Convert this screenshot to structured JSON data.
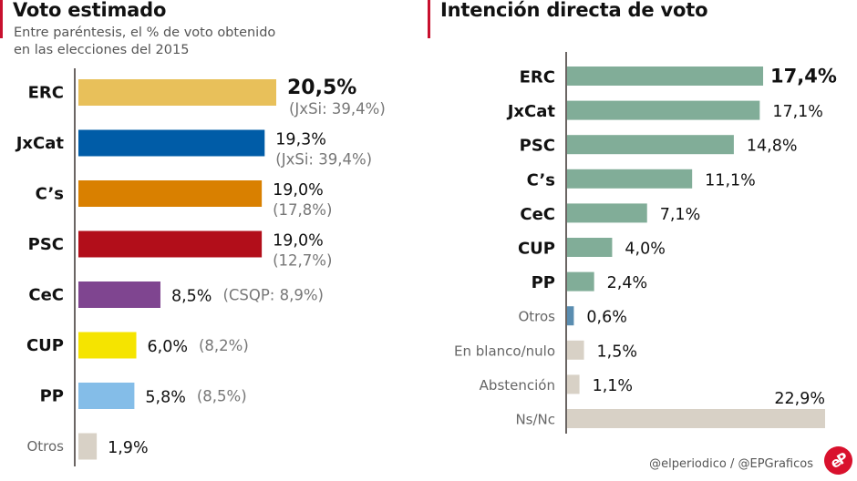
{
  "footer": {
    "credit": "@elperiodico / @EPGraficos",
    "logo_text": "eP"
  },
  "colors": {
    "accent_red": "#c8102e",
    "logo_red": "#d9112d",
    "axis": "#6b6563",
    "green_bar": "#81ad98",
    "otros_blue": "#5a8db0",
    "neutral_bar": "#d8d1c6"
  },
  "chart_data": [
    {
      "type": "bar",
      "orientation": "horizontal",
      "title": "Voto estimado",
      "subtitle_lines": [
        "Entre paréntesis, el % de voto obtenido",
        "en las elecciones del 2015"
      ],
      "unit": "%",
      "xlim": [
        0,
        22
      ],
      "grid": false,
      "legend": "none",
      "categories": [
        "ERC",
        "JxCat",
        "C’s",
        "PSC",
        "CeC",
        "CUP",
        "PP",
        "Otros"
      ],
      "values": [
        20.5,
        19.3,
        19.0,
        19.0,
        8.5,
        6.0,
        5.8,
        1.9
      ],
      "value_labels": [
        "20,5%",
        "19,3%",
        "19,0%",
        "19,0%",
        "8,5%",
        "6,0%",
        "5,8%",
        "1,9%"
      ],
      "previous_labels": [
        "(JxSi: 39,4%)",
        "(JxSi: 39,4%)",
        "(17,8%)",
        "(12,7%)",
        "(CSQP: 8,9%)",
        "(8,2%)",
        "(8,5%)",
        ""
      ],
      "previous_values_2015": [
        39.4,
        39.4,
        17.8,
        12.7,
        8.9,
        8.2,
        8.5,
        null
      ],
      "bar_colors": [
        "#e8c05a",
        "#005ca7",
        "#d98000",
        "#b20e1a",
        "#7f4590",
        "#f5e400",
        "#84bde8",
        "#d8d1c6"
      ],
      "label_styles": [
        "bold",
        "bold",
        "bold",
        "bold",
        "bold",
        "bold",
        "bold",
        "light"
      ],
      "value_styles": [
        "bold",
        "normal",
        "normal",
        "normal",
        "normal",
        "normal",
        "normal",
        "normal"
      ],
      "prev_inline": [
        false,
        false,
        false,
        false,
        true,
        true,
        true,
        false
      ]
    },
    {
      "type": "bar",
      "orientation": "horizontal",
      "title": "Intención directa de voto",
      "unit": "%",
      "xlim": [
        0,
        23
      ],
      "grid": false,
      "legend": "none",
      "categories": [
        "ERC",
        "JxCat",
        "PSC",
        "C’s",
        "CeC",
        "CUP",
        "PP",
        "Otros",
        "En blanco/nulo",
        "Abstención",
        "Ns/Nc"
      ],
      "values": [
        17.4,
        17.1,
        14.8,
        11.1,
        7.1,
        4.0,
        2.4,
        0.6,
        1.5,
        1.1,
        22.9
      ],
      "value_labels": [
        "17,4%",
        "17,1%",
        "14,8%",
        "11,1%",
        "7,1%",
        "4,0%",
        "2,4%",
        "0,6%",
        "1,5%",
        "1,1%",
        "22,9%"
      ],
      "bar_colors": [
        "#81ad98",
        "#81ad98",
        "#81ad98",
        "#81ad98",
        "#81ad98",
        "#81ad98",
        "#81ad98",
        "#5a8db0",
        "#d8d1c6",
        "#d8d1c6",
        "#d8d1c6"
      ],
      "label_styles": [
        "bold",
        "bold",
        "bold",
        "bold",
        "bold",
        "bold",
        "bold",
        "light",
        "light",
        "light",
        "light"
      ],
      "value_styles": [
        "bold",
        "normal",
        "normal",
        "normal",
        "normal",
        "normal",
        "normal",
        "normal",
        "normal",
        "normal",
        "normal"
      ],
      "value_above": [
        false,
        false,
        false,
        false,
        false,
        false,
        false,
        false,
        false,
        false,
        true
      ]
    }
  ]
}
